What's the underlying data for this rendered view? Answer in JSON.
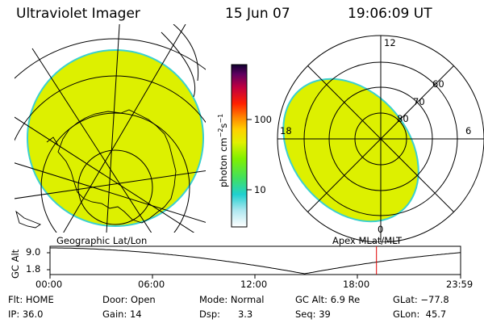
{
  "header": {
    "title": "Ultraviolet Imager",
    "date": "15 Jun 07",
    "time": "19:06:09 UT"
  },
  "colorbar": {
    "unit_label": "photon cm-2s-1",
    "ticks": [
      "100",
      "10"
    ]
  },
  "left_map": {
    "label": "Geographic Lat/Lon",
    "fill_color": "#ddf000"
  },
  "right_map": {
    "label": "Apex MLat/MLT",
    "mlt_labels": {
      "top": "12",
      "left": "18",
      "right": "6",
      "bottom": "0"
    },
    "lat_labels": [
      "60",
      "70",
      "80"
    ],
    "fill_color": "#ddf000"
  },
  "altitude_track": {
    "ylabel": "GC Alt",
    "yticks": [
      "9.0",
      "1.8"
    ],
    "time_ticks": [
      "00:00",
      "06:00",
      "12:00",
      "18:00",
      "23:59"
    ],
    "current_time_fraction": 0.795
  },
  "info": {
    "flt": "Flt: HOME",
    "door": "Door: Open",
    "mode": "Mode: Normal",
    "gcalt": "GC Alt: 6.9 Re",
    "glat": "GLat: −77.8",
    "ip": "IP: 36.0",
    "gain": "Gain: 14",
    "dsp": "Dsp:      3.3",
    "seq": "Seq: 39",
    "glon": "GLon:  45.7"
  }
}
